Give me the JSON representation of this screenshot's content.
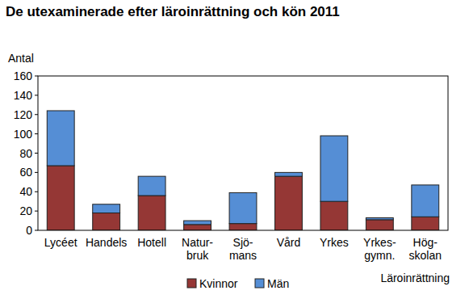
{
  "chart_data": {
    "type": "bar",
    "stacked": true,
    "title": "De utexaminerade efter läroinrättning och kön 2011",
    "y_label": "Antal",
    "x_label": "Läroinrättning",
    "categories": [
      "Lycéet",
      "Handels",
      "Hotell",
      "Natur-\nbruk",
      "Sjö-\nmans",
      "Vård",
      "Yrkes",
      "Yrkes-\ngymn.",
      "Hög-\nskolan"
    ],
    "series": [
      {
        "name": "Kvinnor",
        "color": "#953735",
        "values": [
          67,
          18,
          36,
          6,
          7,
          56,
          30,
          11,
          14
        ]
      },
      {
        "name": "Män",
        "color": "#558ed5",
        "values": [
          57,
          9,
          20,
          4,
          32,
          4,
          68,
          2,
          33
        ]
      }
    ],
    "ylim": [
      0,
      160
    ],
    "yticks": [
      0,
      20,
      40,
      60,
      80,
      100,
      120,
      140,
      160
    ],
    "grid": false,
    "legend": "bottom"
  }
}
